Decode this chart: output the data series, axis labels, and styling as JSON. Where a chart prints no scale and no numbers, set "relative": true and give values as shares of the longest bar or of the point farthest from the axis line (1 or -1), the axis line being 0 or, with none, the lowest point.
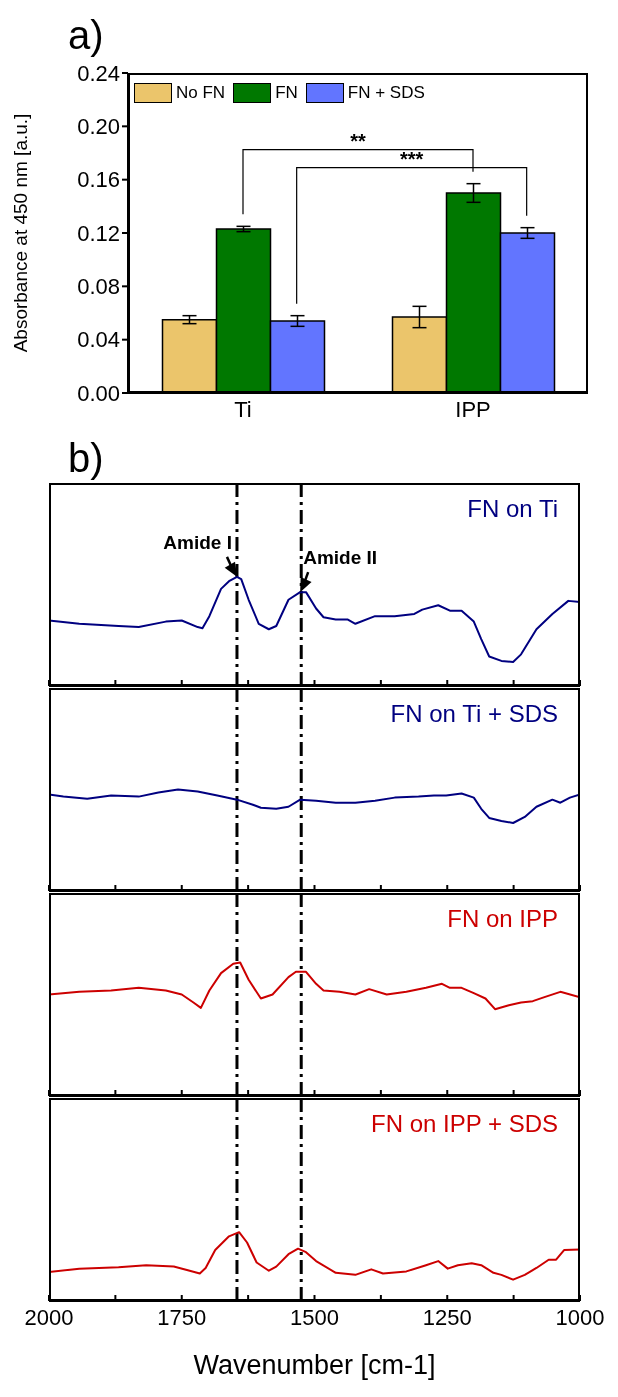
{
  "chart_data": [
    {
      "type": "bar",
      "title": "a)",
      "ylabel": "Absorbance at 450 nm  [a.u.]",
      "categories": [
        "Ti",
        "IPP"
      ],
      "series": [
        {
          "name": "No FN",
          "color": "#ebc56b",
          "values": [
            0.055,
            0.057
          ],
          "errors": [
            0.003,
            0.008
          ]
        },
        {
          "name": "FN",
          "color": "#007800",
          "values": [
            0.123,
            0.15
          ],
          "errors": [
            0.002,
            0.007
          ]
        },
        {
          "name": "FN + SDS",
          "color": "#6275ff",
          "values": [
            0.054,
            0.12
          ],
          "errors": [
            0.004,
            0.004
          ]
        }
      ],
      "ylim": [
        0,
        0.24
      ],
      "yticks": [
        {
          "value": 0,
          "label": "0.00"
        },
        {
          "value": 0.04,
          "label": "0.04"
        },
        {
          "value": 0.08,
          "label": "0.08"
        },
        {
          "value": 0.12,
          "label": "0.12"
        },
        {
          "value": 0.16,
          "label": "0.16"
        },
        {
          "value": 0.2,
          "label": "0.20"
        },
        {
          "value": 0.24,
          "label": "0.24"
        }
      ],
      "legend": "top left",
      "annotations": [
        "**",
        "***"
      ]
    },
    {
      "type": "line",
      "title": "b)",
      "relative": true,
      "tick_labels": false,
      "xlim": [
        2000,
        1000
      ],
      "xticks": [
        {
          "value": 2000,
          "label": null
        },
        {
          "value": 1875,
          "label": null
        },
        {
          "value": 1750,
          "label": null
        },
        {
          "value": 1625,
          "label": null
        },
        {
          "value": 1500,
          "label": null
        },
        {
          "value": 1375,
          "label": null
        },
        {
          "value": 1250,
          "label": null
        },
        {
          "value": 1125,
          "label": null
        },
        {
          "value": 1000,
          "label": null
        }
      ],
      "x": [
        2000,
        1943,
        1869,
        1831,
        1780,
        1750,
        1720,
        1711,
        1698,
        1676,
        1661,
        1646,
        1638,
        1624,
        1605,
        1586,
        1572,
        1549,
        1527,
        1516,
        1497,
        1483,
        1460,
        1438,
        1423,
        1386,
        1349,
        1312,
        1297,
        1267,
        1245,
        1223,
        1200,
        1186,
        1171,
        1148,
        1126,
        1111,
        1082,
        1052,
        1022,
        1000
      ],
      "series": [
        {
          "name": "FN on Ti",
          "color": "#000080",
          "values": [
            0.6,
            0.57,
            0.55,
            0.54,
            0.59,
            0.6,
            0.54,
            0.53,
            0.64,
            0.89,
            0.96,
            1,
            0.98,
            0.79,
            0.57,
            0.52,
            0.55,
            0.79,
            0.86,
            0.86,
            0.71,
            0.63,
            0.61,
            0.61,
            0.57,
            0.64,
            0.64,
            0.66,
            0.7,
            0.74,
            0.69,
            0.69,
            0.59,
            0.43,
            0.27,
            0.23,
            0.22,
            0.29,
            0.52,
            0.66,
            0.78,
            0.77
          ]
        }
      ],
      "ref_lines": [
        {
          "axis": "x",
          "value": 1646,
          "color": "#000000",
          "line_style": "dashed"
        },
        {
          "axis": "x",
          "value": 1525,
          "color": "#000000",
          "line_style": "dashed"
        }
      ],
      "annotations": [
        {
          "text": "Amide I",
          "x": 1646,
          "y": 1
        },
        {
          "text": "Amide II",
          "x": 1527,
          "y": 0.86
        }
      ]
    },
    {
      "type": "line",
      "relative": true,
      "tick_labels": false,
      "xlim": [
        2000,
        1000
      ],
      "xticks": [
        {
          "value": 2000,
          "label": null
        },
        {
          "value": 1875,
          "label": null
        },
        {
          "value": 1750,
          "label": null
        },
        {
          "value": 1625,
          "label": null
        },
        {
          "value": 1500,
          "label": null
        },
        {
          "value": 1375,
          "label": null
        },
        {
          "value": 1250,
          "label": null
        },
        {
          "value": 1125,
          "label": null
        },
        {
          "value": 1000,
          "label": null
        }
      ],
      "x": [
        2000,
        1973,
        1928,
        1883,
        1831,
        1794,
        1757,
        1720,
        1683,
        1646,
        1616,
        1601,
        1572,
        1549,
        1527,
        1497,
        1460,
        1423,
        1386,
        1349,
        1304,
        1275,
        1252,
        1223,
        1200,
        1186,
        1171,
        1148,
        1126,
        1104,
        1082,
        1052,
        1037,
        1019,
        1000
      ],
      "series": [
        {
          "name": "FN on Ti + SDS",
          "color": "#000080",
          "values": [
            0.95,
            0.93,
            0.91,
            0.94,
            0.93,
            0.97,
            1,
            0.98,
            0.94,
            0.9,
            0.85,
            0.82,
            0.81,
            0.83,
            0.9,
            0.89,
            0.87,
            0.87,
            0.89,
            0.92,
            0.93,
            0.94,
            0.94,
            0.96,
            0.92,
            0.81,
            0.72,
            0.69,
            0.67,
            0.73,
            0.83,
            0.9,
            0.87,
            0.92,
            0.95
          ]
        }
      ],
      "ref_lines": [
        {
          "axis": "x",
          "value": 1646,
          "color": "#000000",
          "line_style": "dashed"
        },
        {
          "axis": "x",
          "value": 1525,
          "color": "#000000",
          "line_style": "dashed"
        }
      ]
    },
    {
      "type": "line",
      "relative": true,
      "tick_labels": false,
      "xlim": [
        2000,
        1000
      ],
      "xticks": [
        {
          "value": 2000,
          "label": null
        },
        {
          "value": 1875,
          "label": null
        },
        {
          "value": 1750,
          "label": null
        },
        {
          "value": 1625,
          "label": null
        },
        {
          "value": 1500,
          "label": null
        },
        {
          "value": 1375,
          "label": null
        },
        {
          "value": 1250,
          "label": null
        },
        {
          "value": 1125,
          "label": null
        },
        {
          "value": 1000,
          "label": null
        }
      ],
      "x": [
        2000,
        1943,
        1883,
        1831,
        1780,
        1750,
        1728,
        1714,
        1698,
        1676,
        1653,
        1640,
        1624,
        1601,
        1579,
        1549,
        1535,
        1516,
        1497,
        1483,
        1453,
        1423,
        1397,
        1364,
        1327,
        1290,
        1260,
        1245,
        1223,
        1200,
        1178,
        1160,
        1134,
        1111,
        1089,
        1067,
        1037,
        1000
      ],
      "series": [
        {
          "name": "FN on IPP",
          "color": "#cc0000",
          "values": [
            0.76,
            0.78,
            0.79,
            0.81,
            0.79,
            0.76,
            0.7,
            0.66,
            0.79,
            0.92,
            0.99,
            1,
            0.87,
            0.73,
            0.76,
            0.89,
            0.93,
            0.93,
            0.84,
            0.79,
            0.78,
            0.76,
            0.8,
            0.76,
            0.78,
            0.81,
            0.84,
            0.81,
            0.81,
            0.77,
            0.73,
            0.65,
            0.68,
            0.7,
            0.71,
            0.74,
            0.78,
            0.74
          ]
        }
      ],
      "ref_lines": [
        {
          "axis": "x",
          "value": 1646,
          "color": "#000000",
          "line_style": "dashed"
        },
        {
          "axis": "x",
          "value": 1525,
          "color": "#000000",
          "line_style": "dashed"
        }
      ]
    },
    {
      "type": "line",
      "relative": true,
      "tick_labels": "x",
      "xlabel": "Wavenumber  [cm-1]",
      "xlim": [
        2000,
        1000
      ],
      "xticks": [
        2000,
        {
          "value": 1875,
          "label": null
        },
        1750,
        {
          "value": 1625,
          "label": null
        },
        1500,
        {
          "value": 1375,
          "label": null
        },
        1250,
        {
          "value": 1125,
          "label": null
        },
        1000
      ],
      "x": [
        2000,
        1943,
        1869,
        1817,
        1765,
        1735,
        1716,
        1705,
        1687,
        1661,
        1642,
        1627,
        1609,
        1586,
        1572,
        1549,
        1531,
        1516,
        1497,
        1460,
        1423,
        1393,
        1371,
        1327,
        1290,
        1267,
        1249,
        1230,
        1204,
        1186,
        1163,
        1148,
        1126,
        1104,
        1082,
        1059,
        1045,
        1030,
        1000
      ],
      "series": [
        {
          "name": "FN on IPP + SDS",
          "color": "#cc0000",
          "values": [
            0.42,
            0.47,
            0.49,
            0.52,
            0.5,
            0.44,
            0.4,
            0.48,
            0.74,
            0.94,
            1,
            0.85,
            0.56,
            0.44,
            0.5,
            0.68,
            0.76,
            0.71,
            0.58,
            0.41,
            0.38,
            0.46,
            0.4,
            0.43,
            0.52,
            0.58,
            0.47,
            0.52,
            0.55,
            0.52,
            0.41,
            0.38,
            0.31,
            0.38,
            0.48,
            0.6,
            0.6,
            0.74,
            0.75
          ]
        }
      ],
      "ref_lines": [
        {
          "axis": "x",
          "value": 1646,
          "color": "#000000",
          "line_style": "dashed"
        },
        {
          "axis": "x",
          "value": 1525,
          "color": "#000000",
          "line_style": "dashed"
        }
      ]
    }
  ]
}
